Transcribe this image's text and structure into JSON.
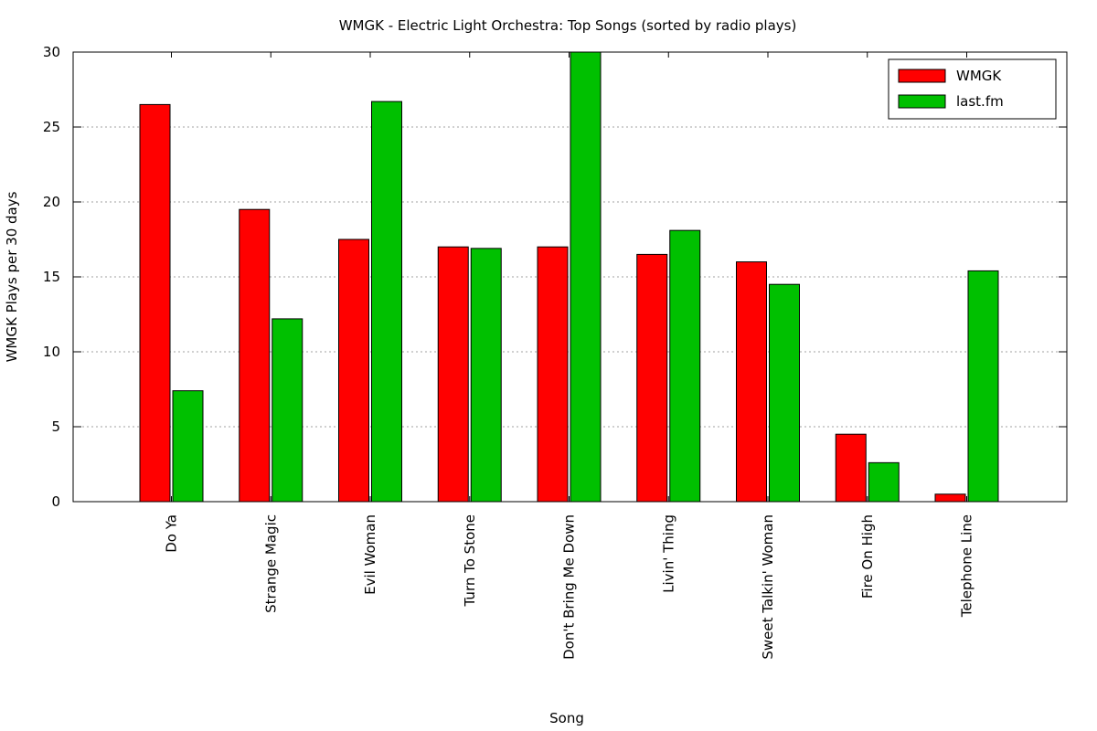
{
  "chart_data": {
    "type": "bar",
    "title": "WMGK - Electric Light Orchestra: Top Songs (sorted by radio plays)",
    "xlabel": "Song",
    "ylabel": "WMGK Plays per 30 days",
    "ylim": [
      0,
      30
    ],
    "yticks": [
      0,
      5,
      10,
      15,
      20,
      25,
      30
    ],
    "grid": true,
    "legend_position": "top-right",
    "categories": [
      "Do Ya",
      "Strange Magic",
      "Evil Woman",
      "Turn To Stone",
      "Don't Bring Me Down",
      "Livin' Thing",
      "Sweet Talkin' Woman",
      "Fire On High",
      "Telephone Line"
    ],
    "series": [
      {
        "name": "WMGK",
        "color": "#ff0000",
        "values": [
          26.5,
          19.5,
          17.5,
          17,
          17,
          16.5,
          16,
          4.5,
          0.5
        ]
      },
      {
        "name": "last.fm",
        "color": "#00c000",
        "values": [
          7.4,
          12.2,
          26.7,
          16.9,
          30,
          18.1,
          14.5,
          2.6,
          15.4
        ]
      }
    ]
  }
}
